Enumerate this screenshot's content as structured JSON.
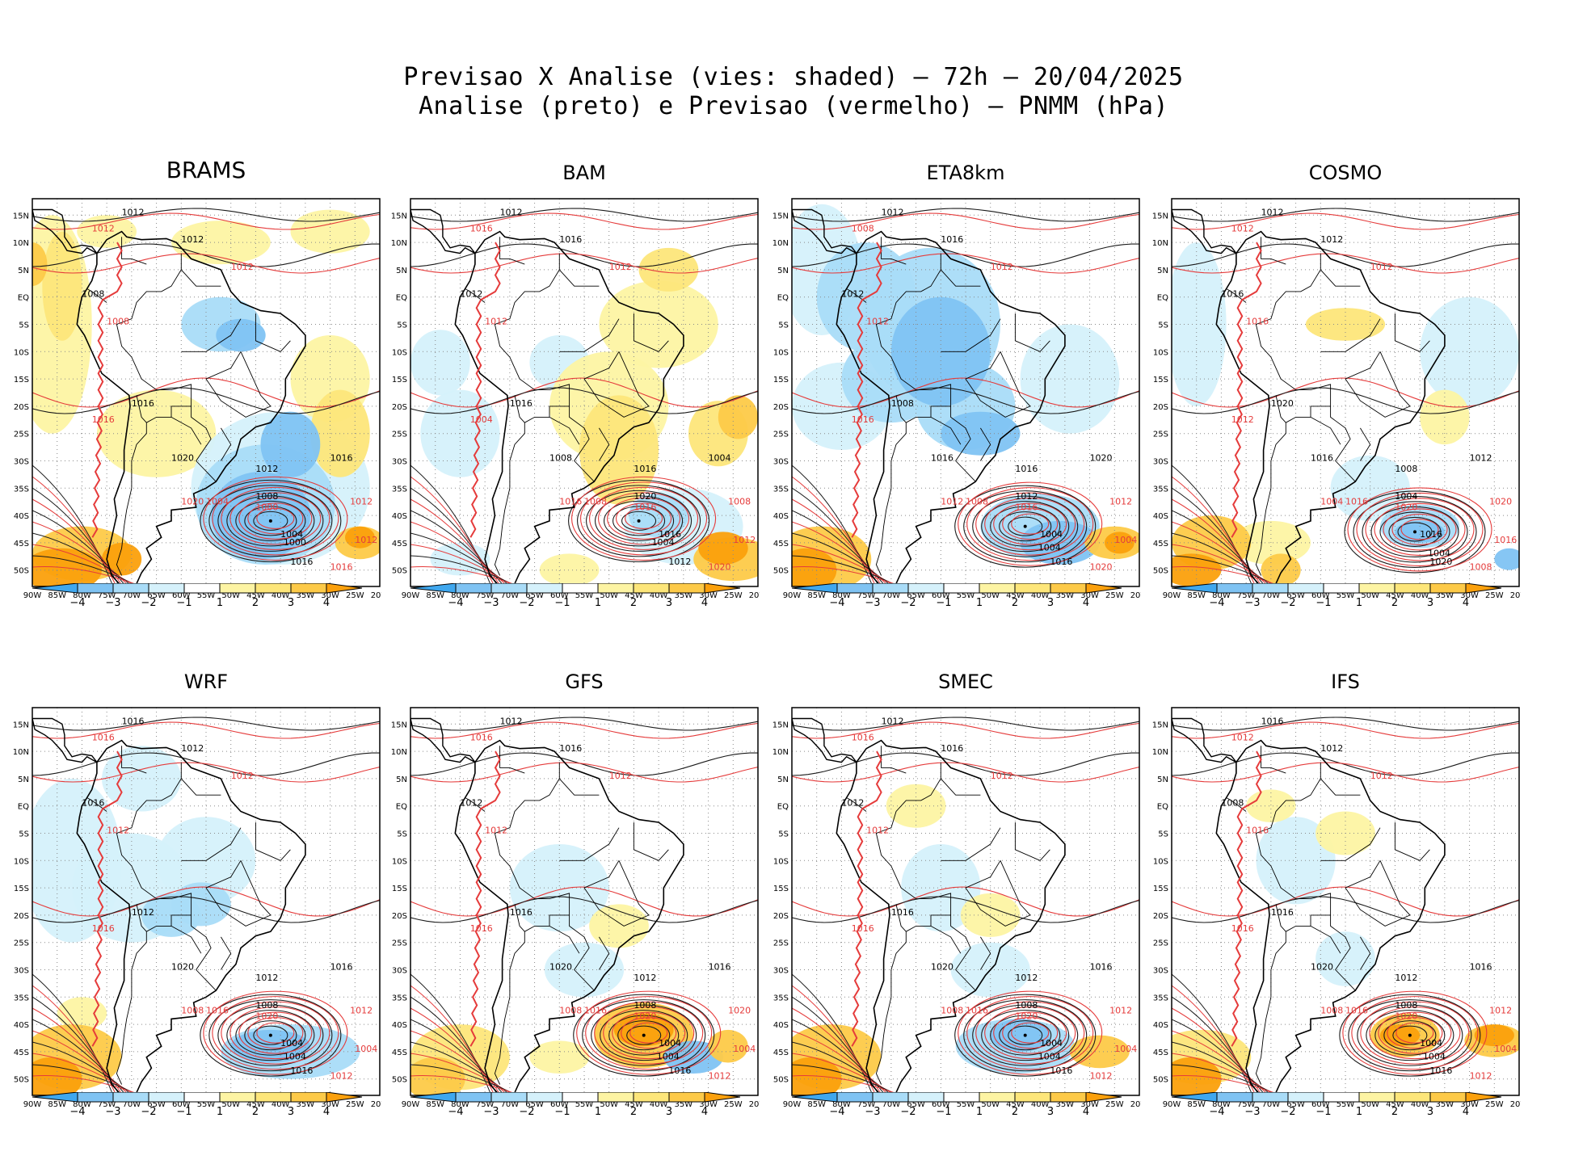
{
  "title_line1": "Previsao X Analise (vies: shaded) — 72h — 20/04/2025",
  "title_line2": "Analise (preto) e Previsao (vermelho) — PNMM (hPa)",
  "colors": {
    "blue4": "#3fa7ee",
    "blue3": "#7fc3f3",
    "blue2": "#a9dcf8",
    "blue1": "#d5f1fb",
    "white": "#ffffff",
    "yel1": "#fdf4a3",
    "yel2": "#fde67a",
    "or3": "#fdca48",
    "or4": "#fba00c",
    "analysis_line": "#1a1a1a",
    "forecast_line": "#e53b3b"
  },
  "colorbar": {
    "labels": [
      "−4",
      "−3",
      "−2",
      "−1",
      "1",
      "2",
      "3",
      "4"
    ]
  },
  "lat_labels": [
    "15N",
    "10N",
    "5N",
    "EQ",
    "5S",
    "10S",
    "15S",
    "20S",
    "25S",
    "30S",
    "35S",
    "40S",
    "45S",
    "50S"
  ],
  "lon_labels": [
    "90W",
    "85W",
    "80W",
    "75W",
    "70W",
    "65W",
    "60W",
    "55W",
    "50W",
    "45W",
    "40W",
    "35W",
    "30W",
    "25W",
    "20W"
  ],
  "panels": [
    {
      "name": "BRAMS",
      "bias": "brams",
      "low_value": 1000,
      "low_lon": -42,
      "low_lat": -41,
      "labels_black": [
        1012,
        1012,
        1008,
        1016,
        1020,
        1016,
        1012,
        1008,
        1004,
        1016
      ],
      "labels_red": [
        1012,
        1012,
        1008,
        1004,
        1000,
        1016,
        1020,
        1012,
        1016,
        1012
      ]
    },
    {
      "name": "BAM",
      "bias": "bam",
      "low_value": 1004,
      "low_lon": -44,
      "low_lat": -41,
      "labels_black": [
        1012,
        1016,
        1012,
        1016,
        1008,
        1004,
        1016,
        1020,
        1016,
        1012
      ],
      "labels_red": [
        1016,
        1012,
        1012,
        1008,
        1016,
        1020,
        1016,
        1012,
        1004,
        1008
      ]
    },
    {
      "name": "ETA8km",
      "bias": "eta",
      "low_value": 1004,
      "low_lon": -43,
      "low_lat": -42,
      "labels_black": [
        1012,
        1016,
        1012,
        1008,
        1016,
        1020,
        1016,
        1012,
        1004,
        1016
      ],
      "labels_red": [
        1008,
        1012,
        1012,
        1008,
        1016,
        1020,
        1012,
        1004,
        1016,
        1012
      ]
    },
    {
      "name": "COSMO",
      "bias": "cosmo",
      "low_value": 1004,
      "low_lon": -41,
      "low_lat": -43,
      "labels_black": [
        1012,
        1012,
        1016,
        1020,
        1016,
        1012,
        1008,
        1004,
        1016,
        1020
      ],
      "labels_red": [
        1012,
        1012,
        1016,
        1016,
        1020,
        1008,
        1004,
        1016,
        1012,
        1020
      ]
    },
    {
      "name": "WRF",
      "bias": "wrf",
      "low_value": 1004,
      "low_lon": -42,
      "low_lat": -42,
      "labels_black": [
        1016,
        1012,
        1016,
        1012,
        1020,
        1016,
        1012,
        1008,
        1004,
        1016
      ],
      "labels_red": [
        1016,
        1012,
        1012,
        1016,
        1020,
        1012,
        1008,
        1004,
        1016,
        1012
      ]
    },
    {
      "name": "GFS",
      "bias": "gfs",
      "low_value": 1004,
      "low_lon": -43,
      "low_lat": -42,
      "labels_black": [
        1012,
        1016,
        1012,
        1016,
        1020,
        1016,
        1012,
        1008,
        1004,
        1016
      ],
      "labels_red": [
        1016,
        1012,
        1012,
        1016,
        1020,
        1012,
        1008,
        1004,
        1016,
        1020
      ]
    },
    {
      "name": "SMEC",
      "bias": "smec",
      "low_value": 1004,
      "low_lon": -43,
      "low_lat": -42,
      "labels_black": [
        1012,
        1016,
        1012,
        1016,
        1020,
        1016,
        1012,
        1008,
        1004,
        1016
      ],
      "labels_red": [
        1016,
        1012,
        1012,
        1016,
        1020,
        1012,
        1008,
        1004,
        1016,
        1012
      ]
    },
    {
      "name": "IFS",
      "bias": "ifs",
      "low_value": 1004,
      "low_lon": -42,
      "low_lat": -42,
      "labels_black": [
        1016,
        1012,
        1008,
        1016,
        1020,
        1016,
        1012,
        1008,
        1004,
        1016
      ],
      "labels_red": [
        1012,
        1012,
        1016,
        1016,
        1020,
        1012,
        1008,
        1004,
        1016,
        1012
      ]
    }
  ]
}
